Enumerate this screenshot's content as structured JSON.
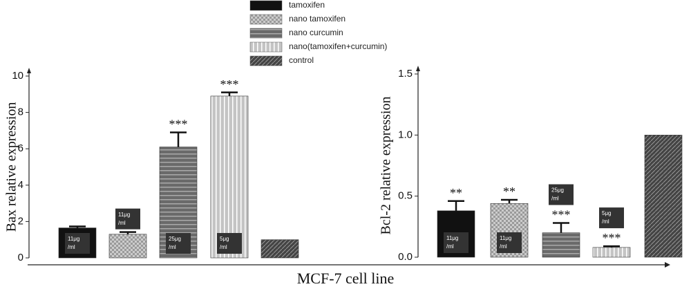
{
  "x_label": "MCF-7 cell line",
  "legend": [
    {
      "name": "tamoxifen",
      "color": "#111111",
      "pattern": "solid"
    },
    {
      "name": "nano tamoxifen",
      "color": "#9a9a9a",
      "pattern": "checker"
    },
    {
      "name": "nano curcumin",
      "color": "#6a6a6a",
      "pattern": "hstripe"
    },
    {
      "name": "nano(tamoxifen+curcumin)",
      "color": "#c4c4c4",
      "pattern": "vstripe"
    },
    {
      "name": "control",
      "color": "#444444",
      "pattern": "diag"
    }
  ],
  "chart_data": [
    {
      "type": "bar",
      "ylabel": "Bax  relative expression",
      "values": [
        1.65,
        1.3,
        6.1,
        8.9,
        1.0
      ],
      "errors": [
        0.08,
        0.12,
        0.8,
        0.2,
        null
      ],
      "annotations": [
        null,
        null,
        "***",
        "***",
        null
      ],
      "dose_labels": [
        [
          "11μg",
          "/ml"
        ],
        [
          "11μg",
          "/ml"
        ],
        [
          "25μg",
          "/ml"
        ],
        [
          "5μg",
          "/ml"
        ],
        null
      ],
      "ylim": [
        0,
        10
      ],
      "yticks": [
        0,
        2,
        4,
        6,
        8,
        10
      ]
    },
    {
      "type": "bar",
      "ylabel": "Bcl-2 relative  expression",
      "values": [
        0.38,
        0.44,
        0.2,
        0.08,
        1.0
      ],
      "errors": [
        0.08,
        0.03,
        0.08,
        0.01,
        null
      ],
      "annotations": [
        "**",
        "**",
        "***",
        "***",
        null
      ],
      "dose_labels": [
        [
          "11μg",
          "/ml"
        ],
        [
          "11μg",
          "/ml"
        ],
        [
          "25μg",
          "/ml"
        ],
        [
          "5μg",
          "/ml"
        ],
        null
      ],
      "ylim": [
        0,
        1.5
      ],
      "yticks": [
        {
          "value": 0,
          "label": "0.0"
        },
        0.5,
        {
          "value": 1,
          "label": "1.0"
        },
        1.5
      ]
    }
  ]
}
